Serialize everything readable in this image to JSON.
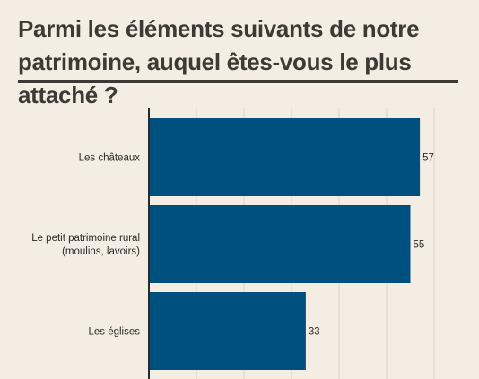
{
  "title": "Parmi les éléments suivants de notre patrimoine, auquel êtes-vous le plus attaché ?",
  "chart_data": {
    "type": "bar",
    "orientation": "horizontal",
    "categories": [
      [
        "Les châteaux"
      ],
      [
        "Le petit patrimoine rural",
        "(moulins, lavoirs)"
      ],
      [
        "Les églises"
      ]
    ],
    "values": [
      57,
      55,
      33
    ],
    "xlim": [
      0,
      60
    ],
    "grid": true,
    "bar_color": "#00507f"
  }
}
